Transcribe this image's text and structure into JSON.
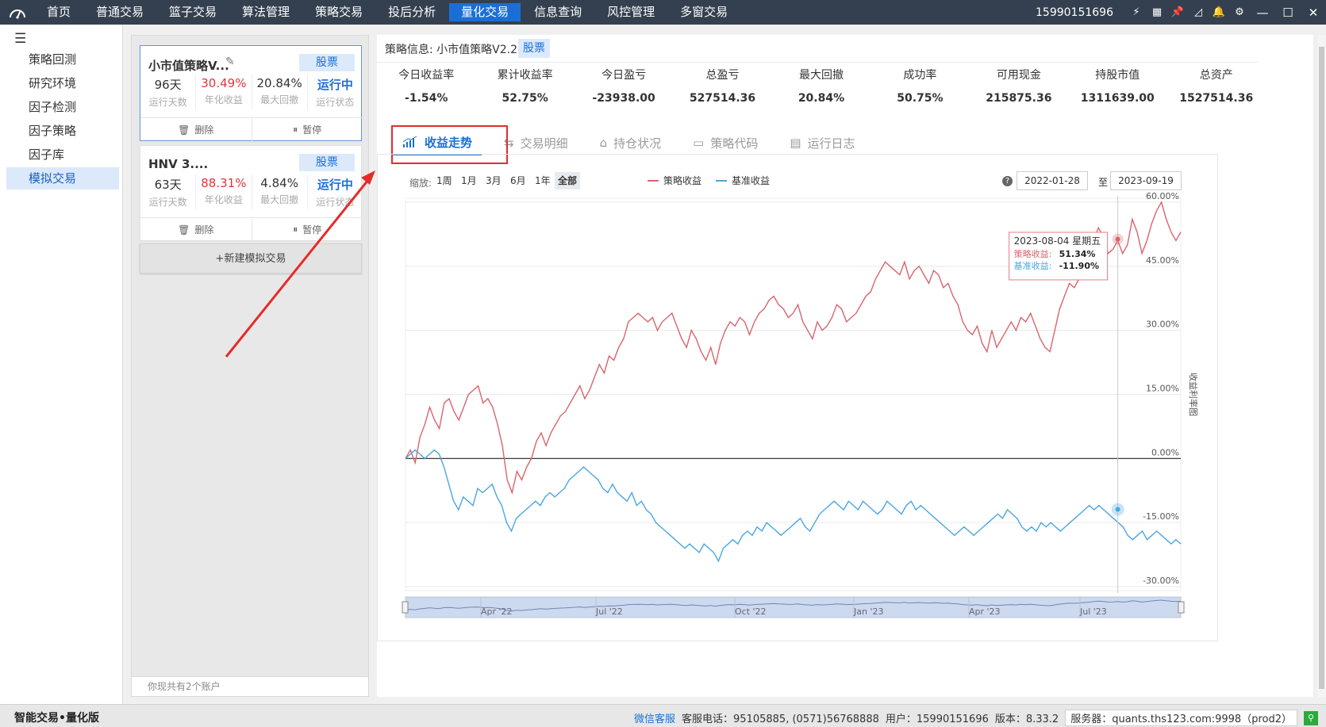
{
  "nav": {
    "items": [
      "首页",
      "普通交易",
      "篮子交易",
      "算法管理",
      "策略交易",
      "投后分析",
      "量化交易",
      "信息查询",
      "风控管理",
      "多窗交易"
    ],
    "active_index": 6,
    "phone": "15990151696"
  },
  "sidebar": {
    "items": [
      "策略回测",
      "研究环境",
      "因子检测",
      "因子策略",
      "因子库",
      "模拟交易"
    ],
    "active_index": 5
  },
  "accounts": [
    {
      "name": "小市值策略V...",
      "tag": "股票",
      "days": "96天",
      "days_label": "运行天数",
      "ret": "30.49%",
      "ret_label": "年化收益",
      "dd": "20.84%",
      "dd_label": "最大回撤",
      "status": "运行中",
      "status_label": "运行状态",
      "delete": "删除",
      "pause": "暂停"
    },
    {
      "name": "HNV 3....",
      "tag": "股票",
      "days": "63天",
      "days_label": "运行天数",
      "ret": "88.31%",
      "ret_label": "年化收益",
      "dd": "4.84%",
      "dd_label": "最大回撤",
      "status": "运行中",
      "status_label": "运行状态",
      "delete": "删除",
      "pause": "暂停"
    }
  ],
  "new_sim_label": "+新建模拟交易",
  "accounts_footer": "你现共有2个账户",
  "strategy": {
    "info_label": "策略信息:",
    "name": "小市值策略V2.2",
    "tag": "股票"
  },
  "summary": [
    {
      "k": "今日收益率",
      "v": "-1.54%"
    },
    {
      "k": "累计收益率",
      "v": "52.75%"
    },
    {
      "k": "今日盈亏",
      "v": "-23938.00"
    },
    {
      "k": "总盈亏",
      "v": "527514.36"
    },
    {
      "k": "最大回撤",
      "v": "20.84%"
    },
    {
      "k": "成功率",
      "v": "50.75%"
    },
    {
      "k": "可用现金",
      "v": "215875.36"
    },
    {
      "k": "持股市值",
      "v": "1311639.00"
    },
    {
      "k": "总资产",
      "v": "1527514.36"
    }
  ],
  "tabs": [
    "收益走势",
    "交易明细",
    "持仓状况",
    "策略代码",
    "运行日志"
  ],
  "chart_controls": {
    "zoom_label": "缩放:",
    "zoom_options": [
      "1周",
      "1月",
      "3月",
      "6月",
      "1年",
      "全部"
    ],
    "zoom_active": "全部",
    "start_date": "2022-01-28",
    "to_label": "至",
    "end_date": "2023-09-19"
  },
  "tooltip": {
    "date": "2023-08-04 星期五",
    "s1_label": "策略收益:",
    "s1_value": "51.34%",
    "s2_label": "基准收益:",
    "s2_value": "-11.90%"
  },
  "colors": {
    "strategy": "#d9646d",
    "benchmark": "#4aa6e0",
    "accent": "#1a6fd6"
  },
  "chart_data": {
    "type": "line",
    "x_range": [
      "2022-01-28",
      "2023-09-19"
    ],
    "ylabel": "收益利率图",
    "ylim": [
      -30,
      60
    ],
    "yticks": [
      "60.00%",
      "45.00%",
      "30.00%",
      "15.00%",
      "0.00%",
      "-15.00%",
      "-30.00%"
    ],
    "yticks_values": [
      60,
      45,
      30,
      15,
      0,
      -15,
      -30
    ],
    "navigator_labels": [
      "Apr '22",
      "Jul '22",
      "Oct '22",
      "Jan '23",
      "Apr '23",
      "Jul '23"
    ],
    "series": [
      {
        "name": "策略收益",
        "values": [
          0,
          2,
          -1,
          5,
          8,
          12,
          9,
          7,
          13,
          14,
          11,
          9,
          12,
          15,
          16,
          17,
          13,
          14,
          12,
          8,
          3,
          -5,
          -8,
          -3,
          -5,
          -2,
          0,
          4,
          6,
          3,
          6,
          8,
          10,
          11,
          13,
          15,
          17,
          14,
          16,
          19,
          22,
          20,
          24,
          23,
          26,
          28,
          32,
          33,
          34,
          33,
          32,
          33,
          30,
          32,
          33,
          34,
          31,
          28,
          26,
          30,
          28,
          25,
          23,
          26,
          22,
          27,
          30,
          32,
          31,
          33,
          32,
          29,
          32,
          34,
          35,
          37,
          38,
          36,
          35,
          33,
          34,
          36,
          32,
          30,
          28,
          32,
          30,
          31,
          33,
          36,
          35,
          32,
          33,
          34,
          36,
          38,
          39,
          42,
          44,
          46,
          45,
          44,
          43,
          46,
          42,
          44,
          45,
          43,
          41,
          44,
          43,
          40,
          41,
          38,
          36,
          32,
          30,
          29,
          31,
          27,
          25,
          30,
          26,
          28,
          30,
          32,
          30,
          33,
          32,
          34,
          31,
          28,
          26,
          25,
          30,
          35,
          38,
          41,
          40,
          42,
          45,
          47,
          51,
          54,
          52,
          48,
          49,
          51,
          48,
          50,
          56,
          53,
          48,
          51,
          55,
          58,
          60,
          56,
          53,
          51,
          53
        ]
      },
      {
        "name": "基准收益",
        "values": [
          0,
          1,
          2,
          1,
          0,
          1,
          2,
          1,
          -2,
          -6,
          -10,
          -12,
          -9,
          -10,
          -11,
          -7,
          -8,
          -7,
          -6,
          -9,
          -11,
          -15,
          -17,
          -14,
          -13,
          -12,
          -11,
          -10,
          -11,
          -9,
          -8,
          -9,
          -8,
          -7,
          -5,
          -4,
          -3,
          -2,
          -3,
          -4,
          -5,
          -7,
          -8,
          -6,
          -8,
          -9,
          -10,
          -8,
          -11,
          -10,
          -12,
          -13,
          -15,
          -16,
          -17,
          -18,
          -19,
          -20,
          -21,
          -20,
          -21,
          -22,
          -20,
          -21,
          -22,
          -24,
          -21,
          -20,
          -19,
          -20,
          -18,
          -17,
          -18,
          -16,
          -17,
          -15,
          -16,
          -17,
          -18,
          -17,
          -16,
          -15,
          -14,
          -16,
          -17,
          -15,
          -13,
          -12,
          -11,
          -10,
          -11,
          -12,
          -10,
          -11,
          -12,
          -10,
          -11,
          -12,
          -13,
          -12,
          -10,
          -11,
          -12,
          -13,
          -11,
          -10,
          -12,
          -11,
          -12,
          -13,
          -14,
          -15,
          -16,
          -17,
          -18,
          -17,
          -16,
          -17,
          -18,
          -17,
          -16,
          -15,
          -14,
          -13,
          -14,
          -12,
          -13,
          -14,
          -16,
          -17,
          -16,
          -17,
          -15,
          -16,
          -15,
          -16,
          -17,
          -16,
          -15,
          -14,
          -13,
          -12,
          -11,
          -12,
          -11,
          -12,
          -13,
          -14,
          -15,
          -16,
          -18,
          -19,
          -18,
          -17,
          -19,
          -18,
          -17,
          -18,
          -19,
          -20,
          -19,
          -20
        ]
      }
    ]
  }
}
